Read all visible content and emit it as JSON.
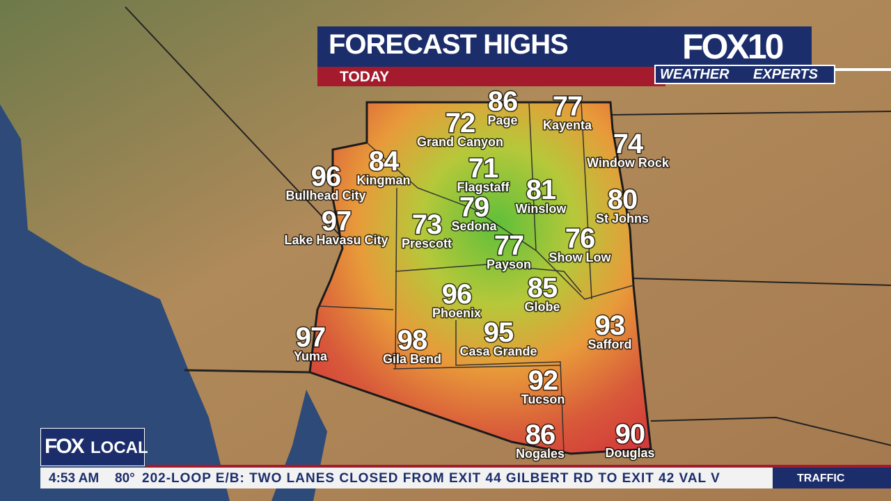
{
  "header": {
    "title": "FORECAST HIGHS",
    "subtitle": "TODAY",
    "logo": "FOX10",
    "brand_left": "WEATHER",
    "brand_right": "EXPERTS"
  },
  "cities": [
    {
      "name": "Page",
      "temp": 86
    },
    {
      "name": "Kayenta",
      "temp": 77
    },
    {
      "name": "Grand Canyon",
      "temp": 72
    },
    {
      "name": "Window Rock",
      "temp": 74
    },
    {
      "name": "Bullhead City",
      "temp": 96
    },
    {
      "name": "Kingman",
      "temp": 84
    },
    {
      "name": "Flagstaff",
      "temp": 71
    },
    {
      "name": "Winslow",
      "temp": 81
    },
    {
      "name": "St Johns",
      "temp": 80
    },
    {
      "name": "Lake Havasu City",
      "temp": 97
    },
    {
      "name": "Sedona",
      "temp": 79
    },
    {
      "name": "Prescott",
      "temp": 73
    },
    {
      "name": "Payson",
      "temp": 77
    },
    {
      "name": "Show Low",
      "temp": 76
    },
    {
      "name": "Globe",
      "temp": 85
    },
    {
      "name": "Phoenix",
      "temp": 96
    },
    {
      "name": "Safford",
      "temp": 93
    },
    {
      "name": "Yuma",
      "temp": 97
    },
    {
      "name": "Gila Bend",
      "temp": 98
    },
    {
      "name": "Casa Grande",
      "temp": 95
    },
    {
      "name": "Tucson",
      "temp": 92
    },
    {
      "name": "Nogales",
      "temp": 86
    },
    {
      "name": "Douglas",
      "temp": 90
    }
  ],
  "ticker": {
    "brand_fox": "FOX",
    "brand_local": "LOCAL",
    "time": "4:53 AM",
    "temperature": "80°",
    "message": "202-LOOP E/B: TWO LANES CLOSED FROM EXIT 44 GILBERT RD TO EXIT 42 VAL V",
    "section": "TRAFFIC"
  }
}
